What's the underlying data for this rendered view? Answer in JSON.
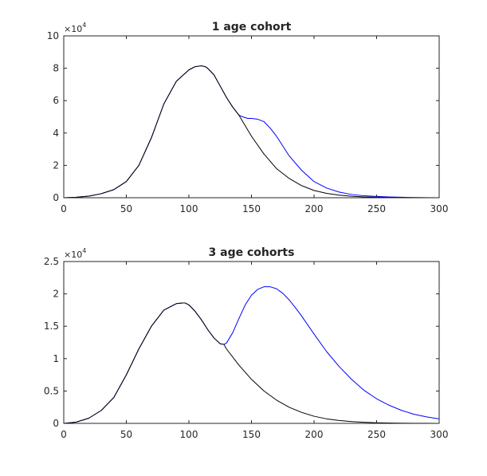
{
  "chart_data": [
    {
      "type": "line",
      "title": "1 age cohort",
      "xlabel": "",
      "ylabel": "",
      "xlim": [
        0,
        300
      ],
      "ylim": [
        0,
        100000
      ],
      "y_exponent_label": "×10",
      "y_exponent": "4",
      "x_ticks": [
        0,
        50,
        100,
        150,
        200,
        250,
        300
      ],
      "x_tick_labels": [
        "0",
        "50",
        "100",
        "150",
        "200",
        "250",
        "300"
      ],
      "y_ticks": [
        0,
        20000,
        40000,
        60000,
        80000,
        100000
      ],
      "y_tick_labels": [
        "0",
        "2",
        "4",
        "6",
        "8",
        "10"
      ],
      "grid": false,
      "series": [
        {
          "color": "#0000ff",
          "x": [
            0,
            10,
            20,
            30,
            40,
            50,
            60,
            70,
            80,
            90,
            100,
            105,
            110,
            113,
            115,
            120,
            125,
            130,
            135,
            140,
            143,
            147,
            150,
            155,
            160,
            165,
            170,
            175,
            180,
            190,
            200,
            210,
            220,
            230,
            240,
            250,
            260,
            270,
            280,
            290,
            300
          ],
          "y": [
            0,
            300,
            1000,
            2500,
            5000,
            10000,
            20000,
            37000,
            58000,
            72000,
            79000,
            81000,
            81500,
            81000,
            80000,
            76000,
            69000,
            62000,
            56000,
            51000,
            50000,
            49000,
            49000,
            48500,
            47000,
            43000,
            38000,
            32000,
            26000,
            17000,
            10000,
            6000,
            3500,
            2000,
            1200,
            800,
            500,
            300,
            150,
            80,
            0
          ]
        },
        {
          "color": "#000000",
          "x": [
            0,
            10,
            20,
            30,
            40,
            50,
            60,
            70,
            80,
            90,
            100,
            105,
            110,
            113,
            115,
            120,
            125,
            130,
            135,
            140,
            150,
            160,
            170,
            180,
            190,
            200,
            210,
            220,
            230,
            240,
            250,
            260,
            270,
            280,
            290,
            300
          ],
          "y": [
            0,
            300,
            1000,
            2500,
            5000,
            10000,
            20000,
            37000,
            58000,
            72000,
            79000,
            81000,
            81500,
            81000,
            80000,
            76000,
            69000,
            62000,
            56000,
            51000,
            38000,
            27000,
            18000,
            12000,
            7500,
            4500,
            2700,
            1600,
            900,
            500,
            300,
            180,
            100,
            50,
            20,
            0
          ]
        }
      ]
    },
    {
      "type": "line",
      "title": "3 age cohorts",
      "xlabel": "",
      "ylabel": "",
      "xlim": [
        0,
        300
      ],
      "ylim": [
        0,
        25000
      ],
      "y_exponent_label": "×10",
      "y_exponent": "4",
      "x_ticks": [
        0,
        50,
        100,
        150,
        200,
        250,
        300
      ],
      "x_tick_labels": [
        "0",
        "50",
        "100",
        "150",
        "200",
        "250",
        "300"
      ],
      "y_ticks": [
        0,
        5000,
        10000,
        15000,
        20000,
        25000
      ],
      "y_tick_labels": [
        "0",
        "0.5",
        "1",
        "1.5",
        "2",
        "2.5"
      ],
      "grid": false,
      "series": [
        {
          "color": "#0000ff",
          "x": [
            0,
            10,
            20,
            30,
            40,
            50,
            60,
            70,
            80,
            90,
            95,
            97,
            100,
            105,
            110,
            115,
            120,
            125,
            128,
            130,
            135,
            140,
            145,
            150,
            155,
            160,
            165,
            170,
            175,
            180,
            185,
            190,
            200,
            210,
            220,
            230,
            240,
            250,
            260,
            270,
            280,
            290,
            300
          ],
          "y": [
            0,
            200,
            800,
            2000,
            4000,
            7500,
            11500,
            15000,
            17500,
            18500,
            18600,
            18600,
            18300,
            17300,
            16000,
            14500,
            13200,
            12300,
            12200,
            12400,
            14000,
            16200,
            18300,
            19800,
            20700,
            21100,
            21100,
            20800,
            20100,
            19100,
            17900,
            16600,
            13800,
            11100,
            8800,
            6800,
            5100,
            3800,
            2800,
            2000,
            1400,
            1000,
            700
          ]
        },
        {
          "color": "#000000",
          "x": [
            0,
            10,
            20,
            30,
            40,
            50,
            60,
            70,
            80,
            90,
            95,
            97,
            100,
            105,
            110,
            115,
            120,
            125,
            128,
            130,
            140,
            150,
            160,
            170,
            180,
            190,
            200,
            210,
            220,
            230,
            240,
            250,
            260,
            270,
            280,
            290,
            300
          ],
          "y": [
            0,
            200,
            800,
            2000,
            4000,
            7500,
            11500,
            15000,
            17500,
            18500,
            18600,
            18600,
            18300,
            17300,
            16000,
            14500,
            13200,
            12300,
            12200,
            11500,
            9000,
            6800,
            5000,
            3600,
            2500,
            1700,
            1100,
            700,
            450,
            280,
            170,
            100,
            60,
            35,
            20,
            10,
            0
          ]
        }
      ]
    }
  ]
}
